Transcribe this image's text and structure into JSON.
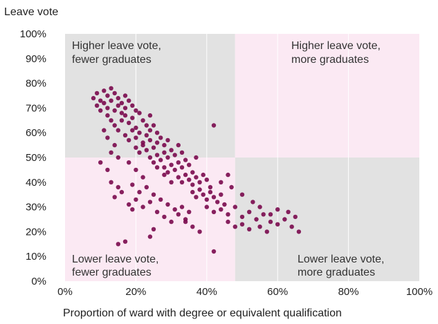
{
  "chart_data": {
    "type": "scatter",
    "title": "",
    "ylabel": "Leave vote",
    "xlabel": "Proportion of ward with degree or equivalent qualification",
    "xlim": [
      0,
      100
    ],
    "ylim": [
      0,
      100
    ],
    "x_ticks": [
      "0%",
      "20%",
      "40%",
      "60%",
      "80%",
      "100%"
    ],
    "y_ticks": [
      "0%",
      "10%",
      "20%",
      "30%",
      "40%",
      "50%",
      "60%",
      "70%",
      "80%",
      "90%",
      "100%"
    ],
    "divider": {
      "x": 48,
      "y": 50
    },
    "quadrants": {
      "top_left": {
        "line1": "Higher leave vote,",
        "line2": "fewer graduates",
        "color": "#e2e2e2"
      },
      "top_right": {
        "line1": "Higher leave vote,",
        "line2": "more graduates",
        "color": "#fbe9f3"
      },
      "bottom_left": {
        "line1": "Lower leave vote,",
        "line2": "fewer graduates",
        "color": "#fbe9f3"
      },
      "bottom_right": {
        "line1": "Lower leave vote,",
        "line2": "more graduates",
        "color": "#e2e2e2"
      }
    },
    "grid": true,
    "point_color": "#7a0a4e",
    "points": [
      [
        8,
        74
      ],
      [
        9,
        76
      ],
      [
        10,
        73
      ],
      [
        11,
        77
      ],
      [
        12,
        75
      ],
      [
        13,
        78
      ],
      [
        9,
        71
      ],
      [
        10,
        69
      ],
      [
        11,
        72
      ],
      [
        12,
        70
      ],
      [
        13,
        73
      ],
      [
        14,
        76
      ],
      [
        15,
        74
      ],
      [
        16,
        72
      ],
      [
        17,
        75
      ],
      [
        12,
        67
      ],
      [
        13,
        65
      ],
      [
        14,
        69
      ],
      [
        15,
        71
      ],
      [
        16,
        68
      ],
      [
        17,
        70
      ],
      [
        18,
        73
      ],
      [
        19,
        71
      ],
      [
        20,
        69
      ],
      [
        14,
        63
      ],
      [
        15,
        61
      ],
      [
        16,
        65
      ],
      [
        17,
        67
      ],
      [
        18,
        64
      ],
      [
        19,
        66
      ],
      [
        20,
        62
      ],
      [
        21,
        68
      ],
      [
        22,
        65
      ],
      [
        23,
        63
      ],
      [
        24,
        67
      ],
      [
        17,
        59
      ],
      [
        18,
        57
      ],
      [
        19,
        61
      ],
      [
        20,
        58
      ],
      [
        21,
        60
      ],
      [
        22,
        56
      ],
      [
        23,
        59
      ],
      [
        24,
        61
      ],
      [
        25,
        63
      ],
      [
        26,
        60
      ],
      [
        20,
        54
      ],
      [
        21,
        52
      ],
      [
        22,
        55
      ],
      [
        23,
        53
      ],
      [
        24,
        57
      ],
      [
        25,
        54
      ],
      [
        26,
        56
      ],
      [
        27,
        58
      ],
      [
        28,
        55
      ],
      [
        29,
        57
      ],
      [
        24,
        50
      ],
      [
        25,
        48
      ],
      [
        26,
        51
      ],
      [
        27,
        49
      ],
      [
        28,
        52
      ],
      [
        29,
        50
      ],
      [
        30,
        53
      ],
      [
        31,
        51
      ],
      [
        32,
        55
      ],
      [
        33,
        52
      ],
      [
        28,
        46
      ],
      [
        29,
        44
      ],
      [
        30,
        47
      ],
      [
        31,
        45
      ],
      [
        32,
        48
      ],
      [
        33,
        46
      ],
      [
        34,
        49
      ],
      [
        35,
        47
      ],
      [
        36,
        44
      ],
      [
        37,
        50
      ],
      [
        32,
        42
      ],
      [
        33,
        40
      ],
      [
        34,
        43
      ],
      [
        35,
        41
      ],
      [
        36,
        39
      ],
      [
        37,
        42
      ],
      [
        38,
        40
      ],
      [
        39,
        43
      ],
      [
        40,
        41
      ],
      [
        41,
        38
      ],
      [
        36,
        36
      ],
      [
        37,
        34
      ],
      [
        38,
        37
      ],
      [
        39,
        35
      ],
      [
        40,
        33
      ],
      [
        41,
        36
      ],
      [
        42,
        34
      ],
      [
        43,
        32
      ],
      [
        44,
        35
      ],
      [
        45,
        31
      ],
      [
        40,
        30
      ],
      [
        42,
        28
      ],
      [
        44,
        29
      ],
      [
        46,
        27
      ],
      [
        48,
        30
      ],
      [
        50,
        26
      ],
      [
        52,
        28
      ],
      [
        54,
        25
      ],
      [
        56,
        27
      ],
      [
        58,
        24
      ],
      [
        46,
        24
      ],
      [
        48,
        22
      ],
      [
        50,
        23
      ],
      [
        52,
        21
      ],
      [
        55,
        22
      ],
      [
        57,
        20
      ],
      [
        60,
        23
      ],
      [
        62,
        25
      ],
      [
        64,
        22
      ],
      [
        66,
        20
      ],
      [
        10,
        48
      ],
      [
        12,
        45
      ],
      [
        13,
        40
      ],
      [
        15,
        38
      ],
      [
        14,
        34
      ],
      [
        16,
        36
      ],
      [
        18,
        31
      ],
      [
        19,
        29
      ],
      [
        20,
        33
      ],
      [
        22,
        30
      ],
      [
        24,
        32
      ],
      [
        26,
        28
      ],
      [
        28,
        26
      ],
      [
        30,
        24
      ],
      [
        32,
        27
      ],
      [
        34,
        25
      ],
      [
        36,
        22
      ],
      [
        38,
        20
      ],
      [
        15,
        15
      ],
      [
        17,
        16
      ],
      [
        24,
        18
      ],
      [
        25,
        21
      ],
      [
        34,
        24
      ],
      [
        42,
        12
      ],
      [
        42,
        63
      ],
      [
        55,
        30
      ],
      [
        58,
        27
      ],
      [
        60,
        29
      ],
      [
        63,
        28
      ],
      [
        65,
        26
      ],
      [
        53,
        32
      ],
      [
        50,
        35
      ],
      [
        47,
        38
      ],
      [
        44,
        40
      ],
      [
        46,
        43
      ],
      [
        11,
        61
      ],
      [
        12,
        58
      ],
      [
        14,
        55
      ],
      [
        13,
        52
      ],
      [
        15,
        50
      ],
      [
        18,
        48
      ],
      [
        20,
        45
      ],
      [
        22,
        42
      ],
      [
        19,
        39
      ],
      [
        21,
        36
      ],
      [
        23,
        38
      ],
      [
        25,
        35
      ],
      [
        27,
        33
      ],
      [
        29,
        31
      ],
      [
        31,
        29
      ],
      [
        33,
        30
      ],
      [
        35,
        28
      ],
      [
        30,
        40
      ],
      [
        28,
        43
      ],
      [
        26,
        46
      ]
    ]
  }
}
